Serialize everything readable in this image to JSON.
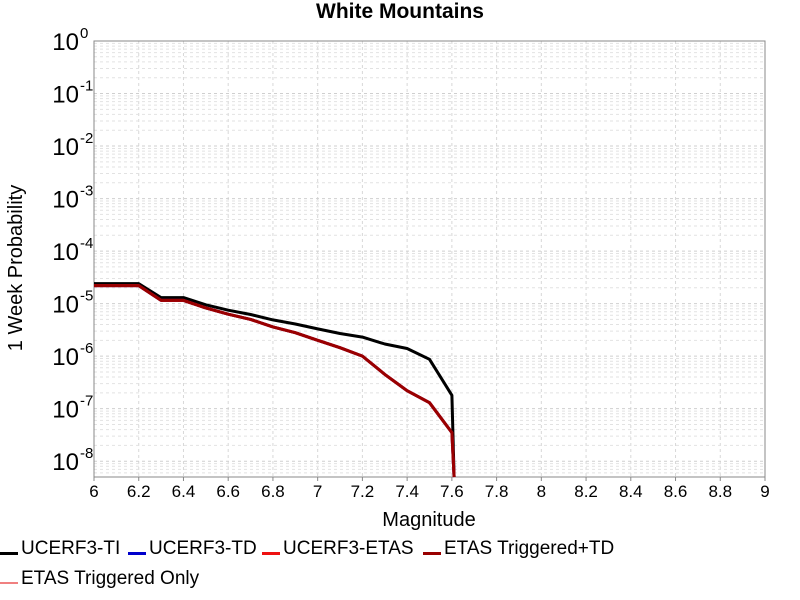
{
  "chart_data": {
    "type": "line",
    "title": "White Mountains",
    "xlabel": "Magnitude",
    "ylabel": "1 Week Probability",
    "xlim": [
      6,
      9
    ],
    "ylim": [
      5e-09,
      1
    ],
    "yscale": "log",
    "grid": true,
    "x_ticks": [
      "6",
      "6.2",
      "6.4",
      "6.6",
      "6.8",
      "7",
      "7.2",
      "7.4",
      "7.6",
      "7.8",
      "8",
      "8.2",
      "8.4",
      "8.6",
      "8.8",
      "9"
    ],
    "y_ticks": [
      {
        "base": "10",
        "exp": "0",
        "value": 1
      },
      {
        "base": "10",
        "exp": "-1",
        "value": 0.1
      },
      {
        "base": "10",
        "exp": "-2",
        "value": 0.01
      },
      {
        "base": "10",
        "exp": "-3",
        "value": 0.001
      },
      {
        "base": "10",
        "exp": "-4",
        "value": 0.0001
      },
      {
        "base": "10",
        "exp": "-5",
        "value": 1e-05
      },
      {
        "base": "10",
        "exp": "-6",
        "value": 1e-06
      },
      {
        "base": "10",
        "exp": "-7",
        "value": 1e-07
      },
      {
        "base": "10",
        "exp": "-8",
        "value": 1e-08
      }
    ],
    "legend_position": "bottom",
    "series": [
      {
        "name": "UCERF3-TI",
        "color": "#000000",
        "width": 3,
        "x": [
          6.0,
          6.1,
          6.2,
          6.3,
          6.4,
          6.5,
          6.6,
          6.7,
          6.8,
          6.9,
          7.0,
          7.1,
          7.2,
          7.3,
          7.4,
          7.5,
          7.6,
          7.61
        ],
        "y": [
          2.4e-05,
          2.4e-05,
          2.4e-05,
          1.3e-05,
          1.3e-05,
          9.5e-06,
          7.5e-06,
          6.2e-06,
          4.9e-06,
          4.1e-06,
          3.3e-06,
          2.7e-06,
          2.3e-06,
          1.7e-06,
          1.4e-06,
          8.7e-07,
          1.8e-07,
          5e-09
        ]
      },
      {
        "name": "UCERF3-TD",
        "color": "#0000cc",
        "width": 3,
        "x": [
          6.0,
          6.1,
          6.2,
          6.3,
          6.4,
          6.5,
          6.6,
          6.7,
          6.8,
          6.9,
          7.0,
          7.1,
          7.2,
          7.3,
          7.4,
          7.5,
          7.6,
          7.61
        ],
        "y": [
          2.2e-05,
          2.2e-05,
          2.2e-05,
          1.15e-05,
          1.15e-05,
          8.3e-06,
          6.3e-06,
          5e-06,
          3.6e-06,
          2.8e-06,
          2e-06,
          1.45e-06,
          1e-06,
          4.5e-07,
          2.2e-07,
          1.3e-07,
          3.5e-08,
          5e-09
        ]
      },
      {
        "name": "UCERF3-ETAS",
        "color": "#ee1111",
        "width": 3,
        "x": [
          6.0,
          6.1,
          6.2,
          6.3,
          6.4,
          6.5,
          6.6,
          6.7,
          6.8,
          6.9,
          7.0,
          7.1,
          7.2,
          7.3,
          7.4,
          7.5,
          7.6,
          7.61
        ],
        "y": [
          2.2e-05,
          2.2e-05,
          2.2e-05,
          1.15e-05,
          1.15e-05,
          8.3e-06,
          6.3e-06,
          5e-06,
          3.6e-06,
          2.8e-06,
          2e-06,
          1.45e-06,
          1e-06,
          4.5e-07,
          2.2e-07,
          1.3e-07,
          3.5e-08,
          5e-09
        ]
      },
      {
        "name": "ETAS Triggered+TD",
        "color": "#990000",
        "width": 3,
        "x": [
          6.0,
          6.1,
          6.2,
          6.3,
          6.4,
          6.5,
          6.6,
          6.7,
          6.8,
          6.9,
          7.0,
          7.1,
          7.2,
          7.3,
          7.4,
          7.5,
          7.6,
          7.61
        ],
        "y": [
          2.2e-05,
          2.2e-05,
          2.2e-05,
          1.15e-05,
          1.15e-05,
          8.3e-06,
          6.3e-06,
          5e-06,
          3.6e-06,
          2.8e-06,
          2e-06,
          1.45e-06,
          1e-06,
          4.5e-07,
          2.2e-07,
          1.3e-07,
          3.5e-08,
          5e-09
        ]
      },
      {
        "name": "ETAS Triggered Only",
        "color": "#f08080",
        "width": 1.5,
        "x": [],
        "y": []
      }
    ]
  }
}
